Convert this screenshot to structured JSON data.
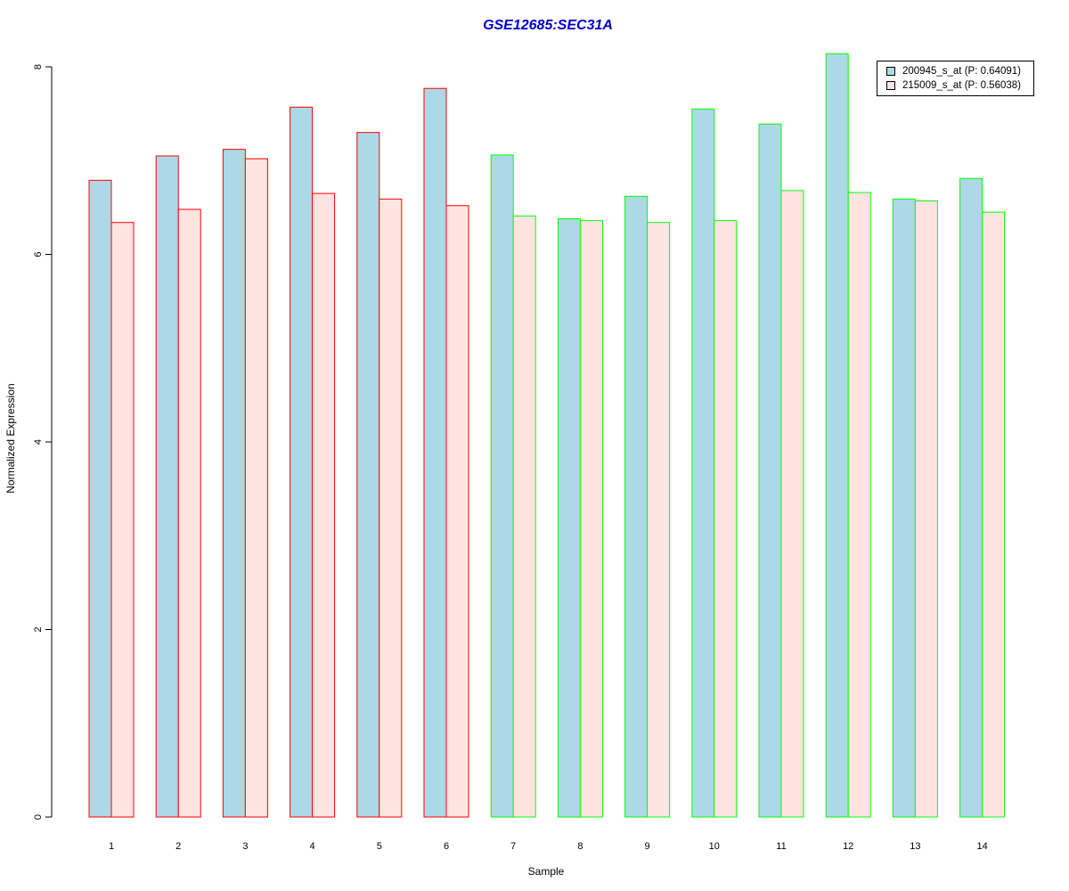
{
  "chart_data": {
    "type": "bar",
    "title": "GSE12685:SEC31A",
    "xlabel": "Sample",
    "ylabel": "Normalized Expression",
    "categories": [
      "1",
      "2",
      "3",
      "4",
      "5",
      "6",
      "7",
      "8",
      "9",
      "10",
      "11",
      "12",
      "13",
      "14"
    ],
    "ylim": [
      0,
      8
    ],
    "yticks": [
      0,
      2,
      4,
      6,
      8
    ],
    "series": [
      {
        "name": "200945_s_at (P: 0.64091)",
        "fill": "#add8e6",
        "values": [
          6.79,
          7.05,
          7.12,
          7.57,
          7.3,
          7.77,
          7.06,
          6.38,
          6.62,
          7.55,
          7.39,
          8.14,
          6.59,
          6.81
        ]
      },
      {
        "name": "215009_s_at (P: 0.56038)",
        "fill": "#ffe4e1",
        "values": [
          6.34,
          6.48,
          7.02,
          6.65,
          6.59,
          6.52,
          6.41,
          6.36,
          6.34,
          6.36,
          6.68,
          6.66,
          6.57,
          6.45
        ]
      }
    ],
    "group_border_colors": [
      "#ff0000",
      "#ff0000",
      "#ff0000",
      "#ff0000",
      "#ff0000",
      "#ff0000",
      "#00ff00",
      "#00ff00",
      "#00ff00",
      "#00ff00",
      "#00ff00",
      "#00ff00",
      "#00ff00",
      "#00ff00"
    ],
    "legend_position": "top-right",
    "grid": false
  }
}
